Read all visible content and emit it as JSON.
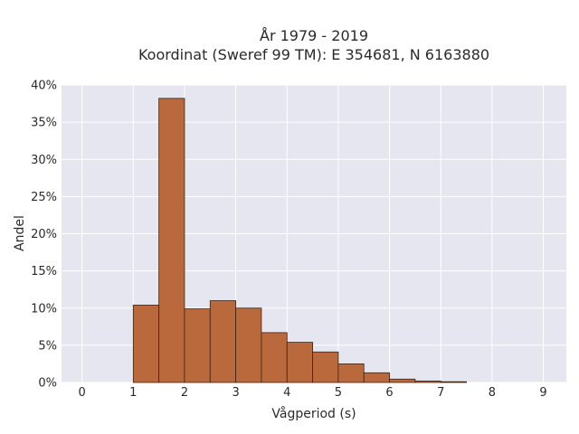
{
  "chart_data": {
    "type": "bar",
    "title_line1": "År 1979 - 2019",
    "title_line2": "Koordinat (Sweref 99 TM): E 354681, N 6163880",
    "xlabel": "Vågperiod (s)",
    "ylabel": "Andel",
    "xlim": [
      -0.4,
      9.45
    ],
    "ylim": [
      0,
      40
    ],
    "x_ticks": [
      0,
      1,
      2,
      3,
      4,
      5,
      6,
      7,
      8,
      9
    ],
    "y_ticks": [
      0,
      5,
      10,
      15,
      20,
      25,
      30,
      35,
      40
    ],
    "y_tick_labels": [
      "0%",
      "5%",
      "10%",
      "15%",
      "20%",
      "25%",
      "30%",
      "35%",
      "40%"
    ],
    "bin_width": 0.5,
    "bins": [
      {
        "x0": 1.0,
        "value": 10.4
      },
      {
        "x0": 1.5,
        "value": 38.2
      },
      {
        "x0": 2.0,
        "value": 9.9
      },
      {
        "x0": 2.5,
        "value": 11.0
      },
      {
        "x0": 3.0,
        "value": 10.0
      },
      {
        "x0": 3.5,
        "value": 6.7
      },
      {
        "x0": 4.0,
        "value": 5.4
      },
      {
        "x0": 4.5,
        "value": 4.1
      },
      {
        "x0": 5.0,
        "value": 2.5
      },
      {
        "x0": 5.5,
        "value": 1.3
      },
      {
        "x0": 6.0,
        "value": 0.45
      },
      {
        "x0": 6.5,
        "value": 0.2
      },
      {
        "x0": 7.0,
        "value": 0.1
      }
    ],
    "grid": true,
    "colors": {
      "bar_fill": "#b9693c",
      "bar_stroke": "#3d2414",
      "plot_bg": "#e5e6ef",
      "grid": "#ffffff"
    }
  }
}
